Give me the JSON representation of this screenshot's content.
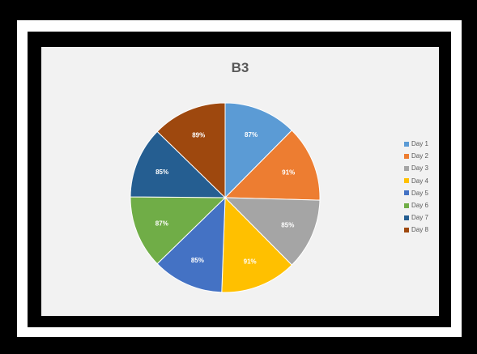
{
  "chart_data": {
    "type": "pie",
    "title": "B3",
    "categories": [
      "Day 1",
      "Day 2",
      "Day 3",
      "Day 4",
      "Day 5",
      "Day 6",
      "Day 7",
      "Day 8"
    ],
    "values": [
      87,
      91,
      85,
      91,
      85,
      87,
      85,
      89
    ],
    "data_labels": [
      "87%",
      "91%",
      "85%",
      "91%",
      "85%",
      "87%",
      "85%",
      "89%"
    ],
    "colors": [
      "#5b9bd5",
      "#ed7d31",
      "#a5a5a5",
      "#ffc000",
      "#4472c4",
      "#70ad47",
      "#255e91",
      "#9e480e"
    ],
    "legend_position": "right"
  }
}
